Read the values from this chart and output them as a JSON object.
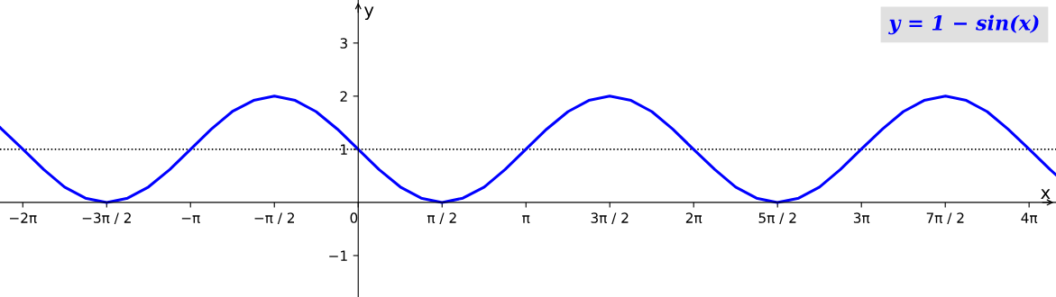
{
  "chart_data": {
    "type": "line",
    "title": "y = 1 − sin(x)",
    "xlabel": "x",
    "ylabel": "y",
    "xlim": [
      -6.71,
      13.07
    ],
    "ylim": [
      -1.78,
      3.81
    ],
    "xticks": [
      {
        "value": -6.283,
        "label": "−2π"
      },
      {
        "value": -4.712,
        "label": "−3π / 2"
      },
      {
        "value": -3.142,
        "label": "−π"
      },
      {
        "value": -1.571,
        "label": "−π / 2"
      },
      {
        "value": 0,
        "label": "0"
      },
      {
        "value": 1.571,
        "label": "π / 2"
      },
      {
        "value": 3.142,
        "label": "π"
      },
      {
        "value": 4.712,
        "label": "3π / 2"
      },
      {
        "value": 6.283,
        "label": "2π"
      },
      {
        "value": 7.854,
        "label": "5π / 2"
      },
      {
        "value": 9.425,
        "label": "3π"
      },
      {
        "value": 10.996,
        "label": "7π / 2"
      },
      {
        "value": 12.566,
        "label": "4π"
      }
    ],
    "yticks": [
      {
        "value": -1,
        "label": "−1"
      },
      1,
      2,
      3
    ],
    "grid": false,
    "legend": false,
    "marker": "none",
    "line_style": "solid",
    "ref_lines": [
      {
        "axis": "y",
        "value": 1,
        "color": "#000000",
        "line_style": "dotted"
      }
    ],
    "series": [
      {
        "color": "#0000ff",
        "x": [
          -6.71,
          -6.68,
          -6.28,
          -5.89,
          -5.5,
          -5.11,
          -4.71,
          -4.32,
          -3.93,
          -3.53,
          -3.14,
          -2.75,
          -2.36,
          -1.96,
          -1.57,
          -1.18,
          -0.79,
          -0.39,
          0,
          0.39,
          0.79,
          1.18,
          1.57,
          1.96,
          2.36,
          2.75,
          3.14,
          3.53,
          3.93,
          4.32,
          4.71,
          5.11,
          5.5,
          5.89,
          6.28,
          6.68,
          7.07,
          7.46,
          7.85,
          8.25,
          8.64,
          9.03,
          9.42,
          9.82,
          10.21,
          10.6,
          11.0,
          11.39,
          11.78,
          12.17,
          12.57,
          12.96,
          13.07
        ],
        "values": [
          1.41,
          1.38,
          1,
          0.62,
          0.29,
          0.08,
          0,
          0.08,
          0.29,
          0.62,
          1,
          1.38,
          1.71,
          1.92,
          2,
          1.92,
          1.71,
          1.38,
          1,
          0.62,
          0.29,
          0.08,
          0,
          0.08,
          0.29,
          0.62,
          1,
          1.38,
          1.71,
          1.92,
          2,
          1.92,
          1.71,
          1.38,
          1,
          0.62,
          0.29,
          0.08,
          0,
          0.08,
          0.29,
          0.62,
          1,
          1.38,
          1.71,
          1.92,
          2,
          1.92,
          1.71,
          1.38,
          1,
          0.62,
          0.52
        ]
      }
    ]
  }
}
